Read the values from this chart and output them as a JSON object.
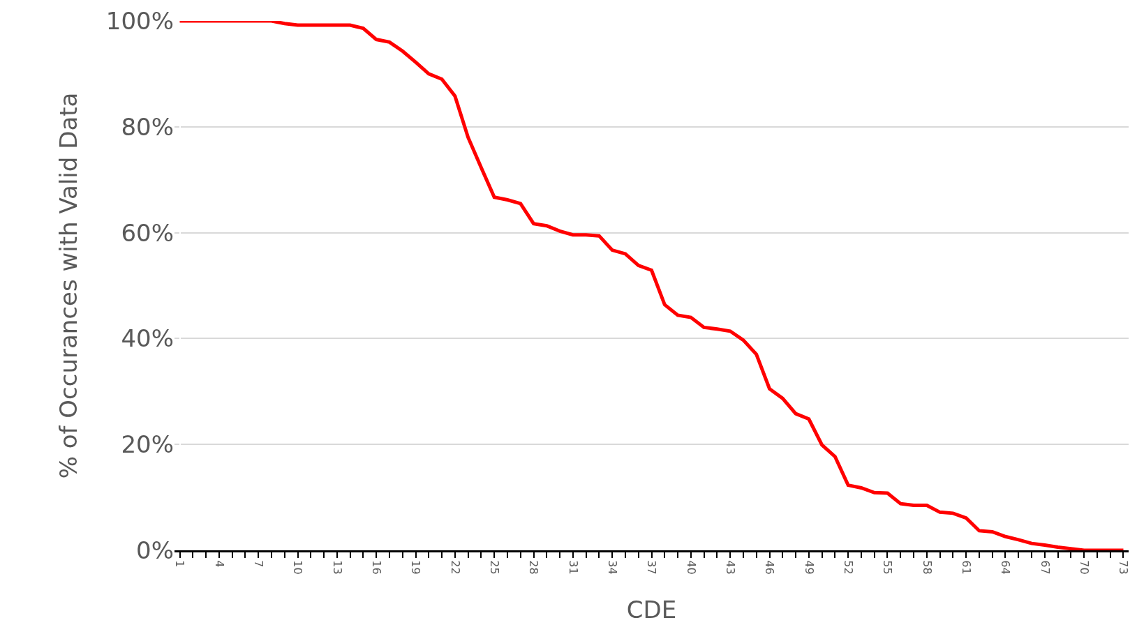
{
  "chart_data": {
    "type": "line",
    "xlabel": "CDE",
    "ylabel": "% of Occurances with Valid Data",
    "categories": [
      "1",
      null,
      null,
      "4",
      null,
      null,
      "7",
      null,
      null,
      "10",
      null,
      null,
      "13",
      null,
      null,
      "16",
      null,
      null,
      "19",
      null,
      null,
      "22",
      null,
      null,
      "25",
      null,
      null,
      "28",
      null,
      null,
      "31",
      null,
      null,
      "34",
      null,
      null,
      "37",
      null,
      null,
      "40",
      null,
      null,
      "43",
      null,
      null,
      "46",
      null,
      null,
      "49",
      null,
      null,
      "52",
      null,
      null,
      "55",
      null,
      null,
      "58",
      null,
      null,
      "61",
      null,
      null,
      "64",
      null,
      null,
      "67",
      null,
      null,
      "70",
      null,
      null,
      "73"
    ],
    "series": [
      {
        "color": "#ff0000",
        "values": [
          100,
          100,
          100,
          100,
          100,
          100,
          100,
          100,
          99.5,
          99.2,
          99.2,
          99.2,
          99.2,
          99.2,
          98.6,
          96.5,
          96,
          94.3,
          92.2,
          90,
          89,
          85.8,
          78,
          72.3,
          66.7,
          66.2,
          65.5,
          61.7,
          61.3,
          60.3,
          59.6,
          59.6,
          59.4,
          56.7,
          56,
          53.8,
          52.9,
          46.4,
          44.4,
          44,
          42.1,
          41.8,
          41.4,
          39.7,
          37,
          30.5,
          28.7,
          25.8,
          24.8,
          19.9,
          17.7,
          12.3,
          11.8,
          10.9,
          10.8,
          8.8,
          8.5,
          8.5,
          7.2,
          7,
          6.1,
          3.7,
          3.5,
          2.6,
          2,
          1.3,
          1,
          0.6,
          0.3,
          0,
          0,
          0,
          0
        ]
      }
    ],
    "ylim": [
      0,
      100
    ],
    "yticks": [
      {
        "value": 0,
        "label": "0%"
      },
      {
        "value": 20,
        "label": "20%"
      },
      {
        "value": 40,
        "label": "40%"
      },
      {
        "value": 60,
        "label": "60%"
      },
      {
        "value": 80,
        "label": "80%"
      },
      {
        "value": 100,
        "label": "100%"
      }
    ],
    "grid": "y",
    "marker": "none",
    "line_style": "solid"
  }
}
